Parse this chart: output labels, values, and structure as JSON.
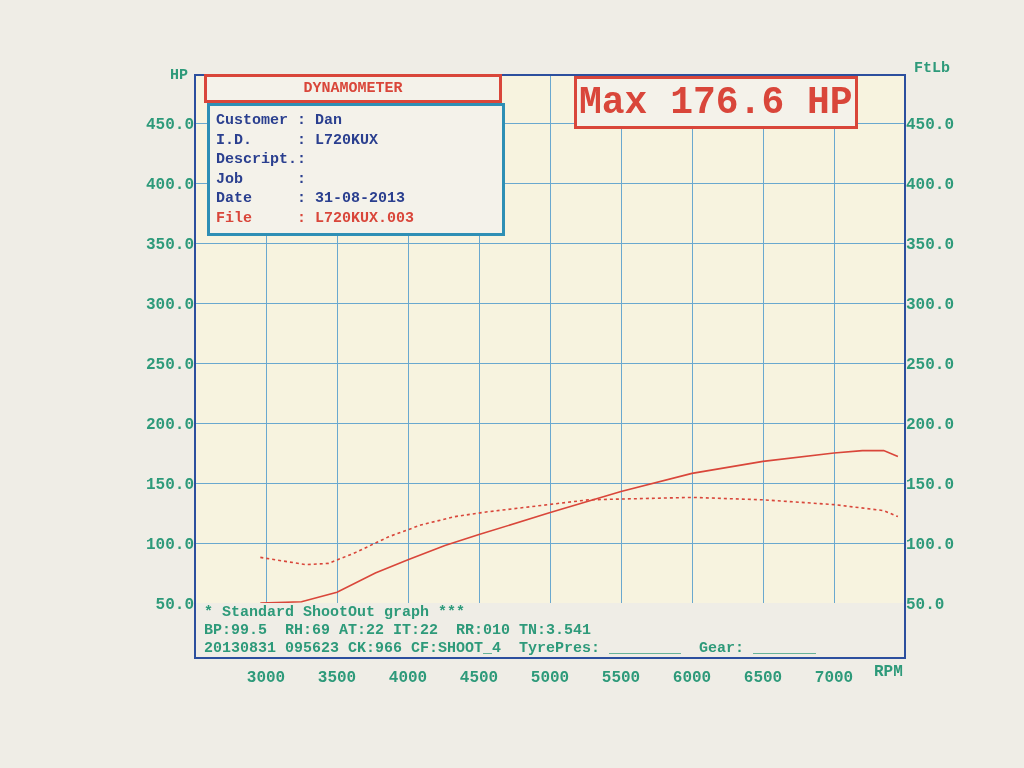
{
  "chart_data": {
    "type": "line",
    "xlabel": "RPM",
    "ylabel": "HP",
    "y2label": "FtLb",
    "annotations": [
      "DYNAMOMETER",
      "Max 176.6 HP",
      "Customer : Dan",
      "I.D.     : L720KUX",
      "Descript.:",
      "Job      :",
      "Date     : 31-08-2013",
      "File     : L720KUX.003",
      "* Standard ShootOut graph ***",
      "BP:99.5  RH:69 AT:22 IT:22  RR:010 TN:3.541",
      "20130831 095623 CK:966 CF:SHOOT_4  TyrePres: ________  Gear: _______"
    ],
    "xlim": [
      2500,
      7500
    ],
    "xticks": [
      3000,
      3500,
      4000,
      4500,
      5000,
      5500,
      6000,
      6500,
      7000
    ],
    "ylim": [
      50,
      490
    ],
    "yticks": [
      {
        "value": 50,
        "label": "50.0"
      },
      {
        "value": 100,
        "label": "100.0"
      },
      {
        "value": 150,
        "label": "150.0"
      },
      {
        "value": 200,
        "label": "200.0"
      },
      {
        "value": 250,
        "label": "250.0"
      },
      {
        "value": 300,
        "label": "300.0"
      },
      {
        "value": 350,
        "label": "350.0"
      },
      {
        "value": 400,
        "label": "400.0"
      },
      {
        "value": 450,
        "label": "450.0"
      }
    ],
    "y2lim": [
      50,
      490
    ],
    "y2ticks": [
      {
        "value": 50,
        "label": "50.0"
      },
      {
        "value": 100,
        "label": "100.0"
      },
      {
        "value": 150,
        "label": "150.0"
      },
      {
        "value": 200,
        "label": "200.0"
      },
      {
        "value": 250,
        "label": "250.0"
      },
      {
        "value": 300,
        "label": "300.0"
      },
      {
        "value": 350,
        "label": "350.0"
      },
      {
        "value": 400,
        "label": "400.0"
      },
      {
        "value": 450,
        "label": "450.0"
      }
    ],
    "grid": true,
    "marker": "none",
    "series": [
      {
        "color": "#d9463a",
        "line_style": "solid",
        "x": [
          2960,
          3250,
          3500,
          3770,
          4000,
          4260,
          4500,
          4990,
          5500,
          6000,
          6500,
          7000,
          7200,
          7350,
          7450
        ],
        "values": [
          50,
          51,
          59,
          75,
          86,
          98,
          107,
          125,
          143,
          158,
          168,
          175,
          177,
          177,
          172
        ]
      },
      {
        "color": "#d9463a",
        "line_style": "dotted",
        "axis": "y2",
        "x": [
          2960,
          3280,
          3440,
          3630,
          3860,
          4090,
          4330,
          4560,
          4990,
          5270,
          6000,
          6500,
          7000,
          7350,
          7450
        ],
        "values": [
          88,
          82,
          83,
          92,
          105,
          115,
          122,
          126,
          132,
          136,
          138,
          136,
          132,
          127,
          122
        ]
      }
    ]
  }
}
